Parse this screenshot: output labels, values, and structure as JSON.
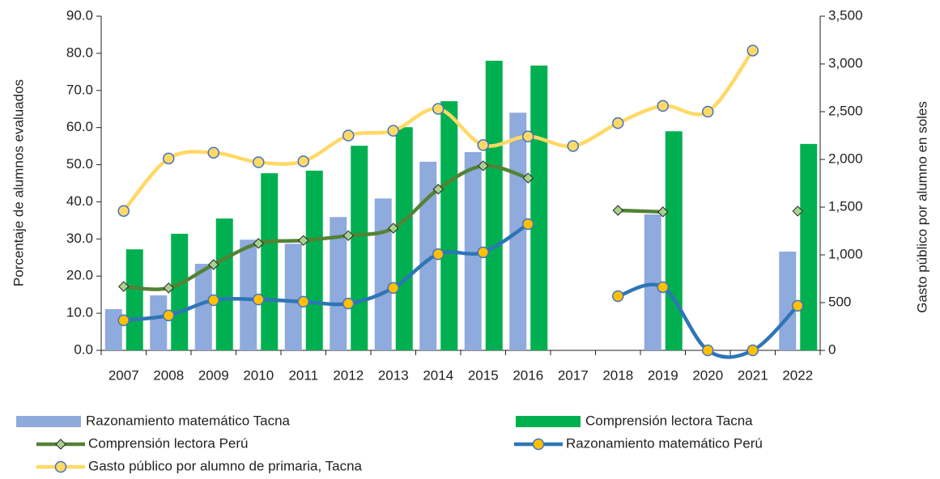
{
  "chart_data": {
    "type": "combo",
    "categories": [
      "2007",
      "2008",
      "2009",
      "2010",
      "2011",
      "2012",
      "2013",
      "2014",
      "2015",
      "2016",
      "2017",
      "2018",
      "2019",
      "2020",
      "2021",
      "2022"
    ],
    "ylabel": "Porcentaje de alumnos evaluados",
    "y2label": "Gasto público por alumno en soles",
    "ylim": [
      0,
      90
    ],
    "yticks": [
      {
        "value": 0,
        "label": "0.0"
      },
      {
        "value": 10,
        "label": "10.0"
      },
      {
        "value": 20,
        "label": "20.0"
      },
      {
        "value": 30,
        "label": "30.0"
      },
      {
        "value": 40,
        "label": "40.0"
      },
      {
        "value": 50,
        "label": "50.0"
      },
      {
        "value": 60,
        "label": "60.0"
      },
      {
        "value": 70,
        "label": "70.0"
      },
      {
        "value": 80,
        "label": "80.0"
      },
      {
        "value": 90,
        "label": "90.0"
      }
    ],
    "y2lim": [
      0,
      3500
    ],
    "y2ticks": [
      0,
      500,
      {
        "value": 1000,
        "label": "1,000"
      },
      {
        "value": 1500,
        "label": "1,500"
      },
      {
        "value": 2000,
        "label": "2,000"
      },
      {
        "value": 2500,
        "label": "2,500"
      },
      {
        "value": 3000,
        "label": "3,000"
      },
      {
        "value": 3500,
        "label": "3,500"
      }
    ],
    "series": [
      {
        "name": "Razonamiento matemático Tacna",
        "type": "bar",
        "color": "#8faadc",
        "values": [
          11.1,
          14.8,
          23.3,
          29.8,
          28.7,
          35.9,
          40.9,
          50.8,
          53.4,
          64.0,
          null,
          null,
          36.6,
          null,
          null,
          26.6
        ]
      },
      {
        "name": "Comprensión lectora Tacna",
        "type": "bar",
        "color": "#00b050",
        "values": [
          27.2,
          31.4,
          35.5,
          47.7,
          48.4,
          55.1,
          60.1,
          67.1,
          78.0,
          76.7,
          null,
          null,
          59.0,
          null,
          null,
          55.6
        ]
      },
      {
        "name": "Comprensión lectora Perú",
        "type": "line",
        "marker": "diamond",
        "color": "#548235",
        "marker_color": "#a9d18e",
        "values": [
          17.2,
          16.8,
          23.1,
          28.8,
          29.6,
          30.9,
          32.9,
          43.4,
          49.7,
          46.4,
          null,
          37.7,
          37.3,
          null,
          null,
          37.5
        ]
      },
      {
        "name": "Razonamiento matemático Perú",
        "type": "line",
        "marker": "circle",
        "color": "#2e75b6",
        "marker_color": "#ffc000",
        "values": [
          8.1,
          9.4,
          13.5,
          13.7,
          13.1,
          12.6,
          16.8,
          25.9,
          26.4,
          34.0,
          null,
          14.6,
          17.0,
          0,
          0,
          12.0
        ]
      },
      {
        "name": "Gasto público por alumno de primaria, Tacna",
        "type": "line",
        "marker": "circle",
        "axis": "y2",
        "color": "#ffd966",
        "marker_color": "#ffd966",
        "values": [
          1460,
          2010,
          2070,
          1970,
          1980,
          2250,
          2300,
          2530,
          2150,
          2240,
          2140,
          2380,
          2560,
          2500,
          3140,
          null
        ]
      }
    ]
  }
}
